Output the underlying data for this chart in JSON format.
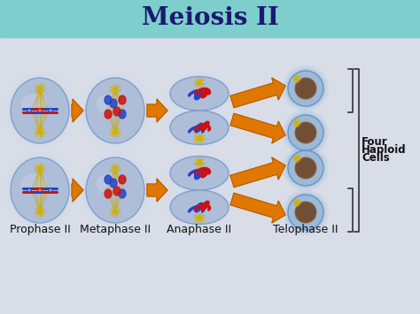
{
  "title": "Meiosis II",
  "title_fontsize": 20,
  "title_fontweight": "bold",
  "title_color": "#1a1a6e",
  "header_color": "#7ecece",
  "body_bg": "#d8dde8",
  "stage_labels": [
    "Prophase II",
    "Metaphase II",
    "Anaphase II",
    "Telophase II"
  ],
  "label_fontsize": 9,
  "label_color": "#111111",
  "arrow_color": "#e07800",
  "cell_fill": "#aabbd8",
  "cell_fill2": "#b8cce0",
  "cell_edge": "#7a9ac8",
  "four_haploid_text": [
    "Four",
    "Haploid",
    "Cells"
  ],
  "four_haploid_fontsize": 8.5,
  "bracket_color": "#333333",
  "blue_chrom": "#2244cc",
  "red_chrom": "#cc1111",
  "spindle_color": "#c8a800",
  "aster_color": "#d4b000",
  "nucleus_fill": "#6b4020",
  "nucleus_edge": "#8a6040"
}
